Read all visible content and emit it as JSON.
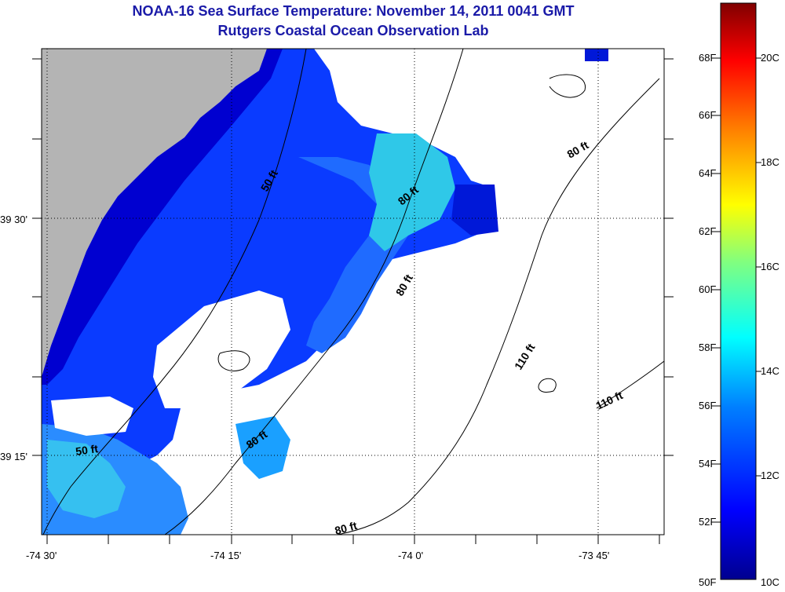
{
  "title": "NOAA-16 Sea Surface Temperature:  November 14, 2011 0041 GMT",
  "subtitle": "Rutgers Coastal Ocean Observation Lab",
  "axes": {
    "x_ticks": [
      "-74 30'",
      "-74 15'",
      "-74 0'",
      "-73 45'"
    ],
    "y_ticks": [
      "39 30'",
      "39 15'"
    ]
  },
  "contour_labels": [
    "50 ft",
    "80 ft",
    "80 ft",
    "80 ft",
    "110 ft",
    "110 ft",
    "80 ft",
    "50 ft",
    "80 ft"
  ],
  "colorbar": {
    "fahrenheit": [
      "68F",
      "66F",
      "64F",
      "62F",
      "60F",
      "58F",
      "56F",
      "54F",
      "52F",
      "50F"
    ],
    "celsius": [
      "20C",
      "18C",
      "16C",
      "14C",
      "12C",
      "10C"
    ],
    "colors": [
      "#00008f",
      "#0000ff",
      "#0080ff",
      "#00ffff",
      "#80ff80",
      "#ffff00",
      "#ff8000",
      "#ff0000",
      "#800000"
    ]
  },
  "colors": {
    "land": "#b4b4b4",
    "title": "#1a1aa8"
  }
}
